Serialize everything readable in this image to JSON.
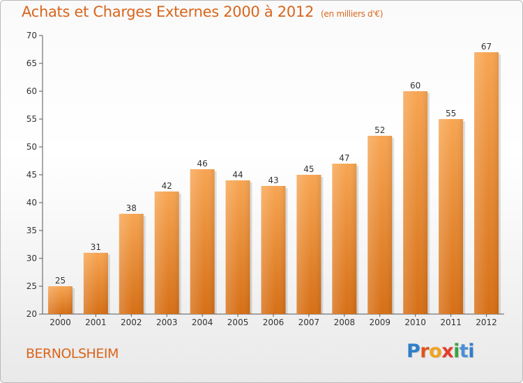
{
  "header": {
    "title": "Achats et Charges Externes 2000 à 2012",
    "unit": "(en milliers d'€)"
  },
  "footer": {
    "commune": "BERNOLSHEIM",
    "brand": "Proxiti"
  },
  "colors": {
    "accent": "#d9651b",
    "bar_top": "#f7a552",
    "bar_bottom": "#d66f16",
    "value_label": "#333333"
  },
  "chart_data": {
    "type": "bar",
    "title": "Achats et Charges Externes 2000 à 2012",
    "subtitle": "(en milliers d'€)",
    "xlabel": "",
    "ylabel": "",
    "categories": [
      "2000",
      "2001",
      "2002",
      "2003",
      "2004",
      "2005",
      "2006",
      "2007",
      "2008",
      "2009",
      "2010",
      "2011",
      "2012"
    ],
    "values": [
      25,
      31,
      38,
      42,
      46,
      44,
      43,
      45,
      47,
      52,
      60,
      55,
      67
    ],
    "ylim": [
      20,
      70
    ],
    "yticks": [
      20,
      25,
      30,
      35,
      40,
      45,
      50,
      55,
      60,
      65,
      70
    ],
    "grid": false,
    "data_labels": true
  }
}
